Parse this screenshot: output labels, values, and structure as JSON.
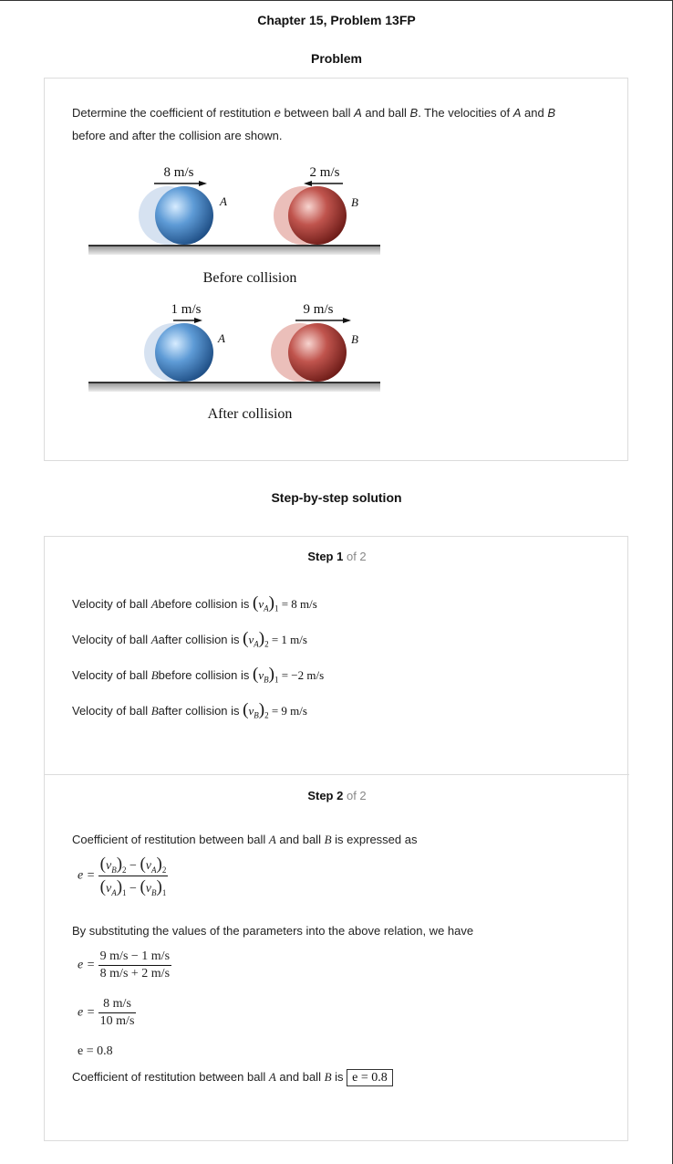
{
  "header": {
    "title": "Chapter 15, Problem 13FP",
    "problem_label": "Problem",
    "solution_label": "Step-by-step solution"
  },
  "problem": {
    "text_1": "Determine the coefficient of restitution ",
    "text_e": "e",
    "text_2": " between ball ",
    "text_A": "A",
    "text_3": " and ball ",
    "text_B": "B",
    "text_4": ". The velocities of ",
    "text_A2": "A",
    "text_5": " and ",
    "text_B2": "B",
    "text_6": "before and after the collision are shown.",
    "figure": {
      "before_va": "8 m/s",
      "before_vb": "2 m/s",
      "before_caption": "Before collision",
      "after_va": "1 m/s",
      "after_vb": "9 m/s",
      "after_caption": "After collision",
      "label_a": "A",
      "label_b": "B",
      "ball_a_color": "#4a8ccc",
      "ball_b_color": "#b8443f"
    }
  },
  "step1": {
    "title_bold": "Step 1",
    "title_of": "of 2",
    "lines": [
      {
        "pre": "Velocity of ball ",
        "ball": "A",
        "mid": "before collision is ",
        "sym": "v",
        "subsym": "A",
        "idx": "1",
        "val": "= 8 m/s"
      },
      {
        "pre": "Velocity of ball ",
        "ball": "A",
        "mid": "after collision is ",
        "sym": "v",
        "subsym": "A",
        "idx": "2",
        "val": "= 1 m/s"
      },
      {
        "pre": "Velocity of ball ",
        "ball": "B",
        "mid": "before collision is ",
        "sym": "v",
        "subsym": "B",
        "idx": "1",
        "val": "= −2 m/s"
      },
      {
        "pre": "Velocity of ball ",
        "ball": "B",
        "mid": "after collision is ",
        "sym": "v",
        "subsym": "B",
        "idx": "2",
        "val": "= 9 m/s"
      }
    ]
  },
  "step2": {
    "title_bold": "Step 2",
    "title_of": "of 2",
    "intro_pre": "Coefficient of restitution between ball ",
    "intro_A": "A",
    "intro_mid": "and ball ",
    "intro_B": "B",
    "intro_post": "is expressed as",
    "eq_lhs": "e =",
    "subst_text": "By substituting the values of the parameters into the above relation, we have",
    "sub_num": "9 m/s − 1 m/s",
    "sub_den": "8 m/s + 2 m/s",
    "simp_num": "8 m/s",
    "simp_den": "10 m/s",
    "result": "e = 0.8",
    "final_pre": "Coefficient of restitution between ball ",
    "final_A": "A",
    "final_mid": "and ball ",
    "final_B": "B",
    "final_is": "is",
    "final_box": "e = 0.8"
  }
}
